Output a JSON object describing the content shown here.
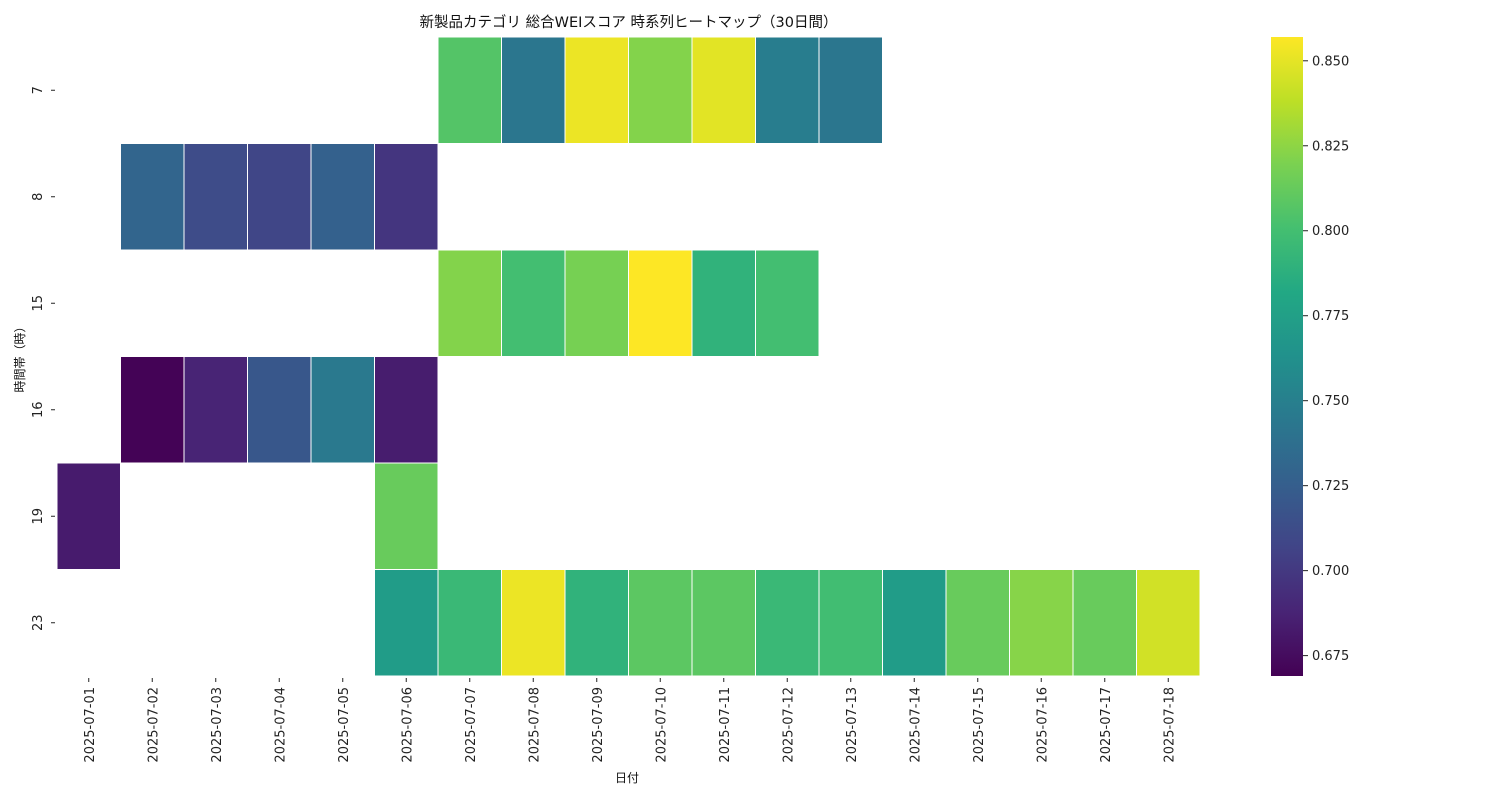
{
  "chart_data": {
    "type": "heatmap",
    "title": "新製品カテゴリ 総合WEIスコア 時系列ヒートマップ（30日間）",
    "xlabel": "日付",
    "ylabel": "時間帯（時）",
    "x_categories": [
      "2025-07-01",
      "2025-07-02",
      "2025-07-03",
      "2025-07-04",
      "2025-07-05",
      "2025-07-06",
      "2025-07-07",
      "2025-07-08",
      "2025-07-09",
      "2025-07-10",
      "2025-07-11",
      "2025-07-12",
      "2025-07-13",
      "2025-07-14",
      "2025-07-15",
      "2025-07-16",
      "2025-07-17",
      "2025-07-18"
    ],
    "y_categories": [
      "7",
      "8",
      "15",
      "16",
      "19",
      "23"
    ],
    "values": [
      [
        null,
        null,
        null,
        null,
        null,
        null,
        0.806,
        0.743,
        0.852,
        0.822,
        0.849,
        0.748,
        0.743,
        null,
        null,
        null,
        null,
        null
      ],
      [
        null,
        0.73,
        0.712,
        0.708,
        0.727,
        0.698,
        null,
        null,
        null,
        null,
        null,
        null,
        null,
        null,
        null,
        null,
        null,
        null
      ],
      [
        null,
        null,
        null,
        null,
        null,
        null,
        0.822,
        0.8,
        0.818,
        0.857,
        0.79,
        0.8,
        null,
        null,
        null,
        null,
        null,
        null
      ],
      [
        null,
        0.67,
        0.688,
        0.72,
        0.745,
        0.684,
        null,
        null,
        null,
        null,
        null,
        null,
        null,
        null,
        null,
        null,
        null,
        null
      ],
      [
        0.683,
        null,
        null,
        null,
        null,
        0.813,
        null,
        null,
        null,
        null,
        null,
        null,
        null,
        null,
        null,
        null,
        null,
        null
      ],
      [
        null,
        null,
        null,
        null,
        null,
        0.772,
        0.795,
        0.852,
        0.79,
        0.809,
        0.809,
        0.795,
        0.799,
        0.772,
        0.813,
        0.823,
        0.813,
        0.844
      ]
    ],
    "colorscale": "viridis",
    "colorbar": {
      "range": [
        0.669,
        0.857
      ],
      "ticks": [
        0.675,
        0.7,
        0.725,
        0.75,
        0.775,
        0.8,
        0.825,
        0.85
      ],
      "tick_labels": [
        "0.675",
        "0.700",
        "0.725",
        "0.750",
        "0.775",
        "0.800",
        "0.825",
        "0.850"
      ]
    },
    "grid": false,
    "colorbar_position": "right"
  }
}
